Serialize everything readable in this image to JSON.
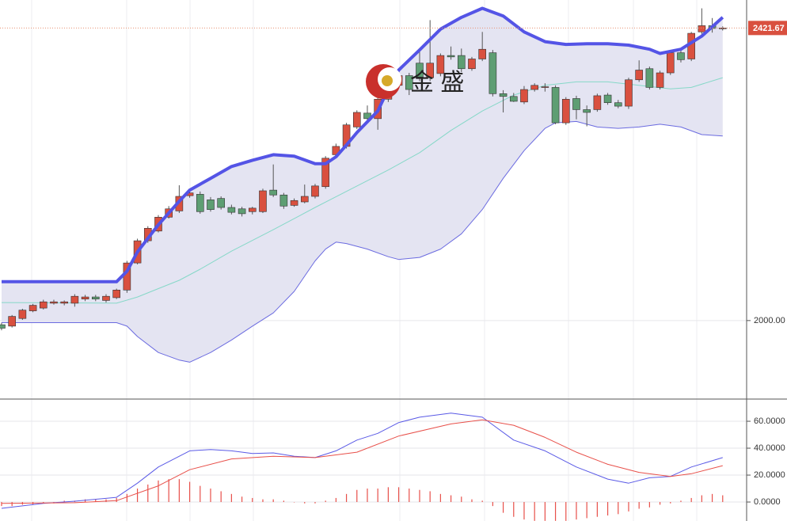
{
  "chart_data": [
    {
      "type": "candlestick",
      "watermark": "金 盛",
      "xlim": [
        -0.15,
        71.29
      ],
      "ylim": [
        1888,
        2462
      ],
      "yticks": [
        {
          "value": 2000,
          "label": "2000.00"
        }
      ],
      "last_price": {
        "value": 2421.67,
        "label": "2421.67"
      },
      "up_color": "#d9503f",
      "down_color": "#5e9e73",
      "open": [
        1994,
        1992,
        2003,
        2014,
        2018,
        2025,
        2025,
        2025,
        2031,
        2034,
        2029,
        2033,
        2044,
        2083,
        2115,
        2129,
        2149,
        2158,
        2180,
        2182,
        2174,
        2176,
        2163,
        2161,
        2157,
        2157,
        2188,
        2181,
        2166,
        2171,
        2179,
        2193,
        2239,
        2251,
        2279,
        2299,
        2291,
        2319,
        2339,
        2353,
        2371,
        2350,
        2356,
        2382,
        2382,
        2363,
        2377,
        2386,
        2327,
        2323,
        2315,
        2333,
        2336,
        2336,
        2285,
        2320,
        2304,
        2304,
        2325,
        2314,
        2309,
        2347,
        2363,
        2336,
        2357,
        2386,
        2377,
        2416,
        2425,
        2421
      ],
      "high": [
        1997,
        2008,
        2017,
        2024,
        2030,
        2030,
        2029,
        2038,
        2037,
        2037,
        2038,
        2046,
        2086,
        2118,
        2136,
        2152,
        2165,
        2195,
        2187,
        2186,
        2178,
        2179,
        2167,
        2164,
        2164,
        2190,
        2225,
        2184,
        2176,
        2196,
        2197,
        2237,
        2255,
        2285,
        2303,
        2310,
        2322,
        2351,
        2360,
        2357,
        2390,
        2433,
        2385,
        2395,
        2392,
        2380,
        2416,
        2390,
        2332,
        2328,
        2338,
        2342,
        2342,
        2339,
        2322,
        2324,
        2310,
        2327,
        2328,
        2318,
        2350,
        2375,
        2366,
        2360,
        2390,
        2390,
        2416,
        2450,
        2436,
        2424
      ],
      "low": [
        1986,
        1990,
        2001,
        2012,
        2016,
        2023,
        2022,
        2020,
        2028,
        2028,
        2026,
        2031,
        2040,
        2081,
        2112,
        2127,
        2147,
        2155,
        2177,
        2154,
        2157,
        2160,
        2153,
        2150,
        2153,
        2155,
        2178,
        2161,
        2164,
        2169,
        2176,
        2190,
        2236,
        2248,
        2276,
        2285,
        2275,
        2315,
        2336,
        2325,
        2345,
        2345,
        2352,
        2376,
        2358,
        2360,
        2374,
        2323,
        2300,
        2315,
        2312,
        2330,
        2330,
        2283,
        2282,
        2290,
        2280,
        2301,
        2311,
        2306,
        2305,
        2344,
        2333,
        2333,
        2354,
        2372,
        2374,
        2412,
        2415,
        2418
      ],
      "close": [
        1989,
        2006,
        2015,
        2022,
        2027,
        2027,
        2027,
        2035,
        2034,
        2031,
        2035,
        2044,
        2083,
        2115,
        2133,
        2149,
        2161,
        2179,
        2184,
        2157,
        2160,
        2163,
        2156,
        2154,
        2162,
        2187,
        2181,
        2165,
        2173,
        2179,
        2194,
        2234,
        2251,
        2282,
        2300,
        2291,
        2319,
        2348,
        2353,
        2333,
        2351,
        2371,
        2382,
        2380,
        2363,
        2377,
        2391,
        2327,
        2323,
        2316,
        2333,
        2339,
        2337,
        2285,
        2319,
        2304,
        2300,
        2324,
        2314,
        2309,
        2347,
        2361,
        2336,
        2357,
        2386,
        2376,
        2414,
        2425,
        2421,
        2421.67
      ],
      "band_fill": "#e4e4f2",
      "series": [
        {
          "role": "upper",
          "color": "#5454e6",
          "width": 4,
          "x": [
            0,
            11,
            12,
            13,
            15,
            17,
            18,
            20,
            22,
            24,
            26,
            28,
            30,
            31,
            32,
            33,
            34,
            36,
            37,
            38,
            40,
            42,
            44,
            46,
            48,
            50,
            52,
            54,
            56,
            58,
            60,
            62,
            63,
            65,
            67,
            69
          ],
          "values": [
            2056,
            2056,
            2071,
            2099,
            2138,
            2172,
            2188,
            2205,
            2222,
            2231,
            2239,
            2237,
            2226,
            2226,
            2236,
            2253,
            2271,
            2302,
            2334,
            2361,
            2390,
            2420,
            2437,
            2450,
            2439,
            2416,
            2402,
            2398,
            2399,
            2399,
            2397,
            2391,
            2385,
            2391,
            2410,
            2437
          ]
        },
        {
          "role": "middle",
          "color": "#86d8c8",
          "width": 1,
          "x": [
            0,
            11,
            13,
            15,
            17,
            19,
            22,
            26,
            30,
            34,
            37,
            40,
            43,
            46,
            49,
            52,
            55,
            58,
            61,
            64,
            66,
            69
          ],
          "values": [
            2026,
            2025,
            2034,
            2046,
            2058,
            2074,
            2100,
            2131,
            2163,
            2194,
            2217,
            2242,
            2274,
            2302,
            2325,
            2339,
            2344,
            2344,
            2339,
            2334,
            2336,
            2350
          ]
        },
        {
          "role": "lower",
          "color": "#6b6be0",
          "width": 1,
          "x": [
            0,
            11,
            12,
            13,
            15,
            17,
            18,
            20,
            22,
            24,
            26,
            28,
            30,
            31,
            32,
            33,
            35,
            37,
            38,
            40,
            42,
            44,
            46,
            48,
            50,
            52,
            53,
            55,
            57,
            59,
            61,
            63,
            65,
            67,
            69
          ],
          "values": [
            1997,
            1997,
            1992,
            1977,
            1954,
            1943,
            1940,
            1954,
            1972,
            1992,
            2011,
            2042,
            2086,
            2103,
            2113,
            2111,
            2103,
            2092,
            2088,
            2091,
            2103,
            2125,
            2160,
            2205,
            2245,
            2277,
            2285,
            2287,
            2279,
            2277,
            2279,
            2283,
            2279,
            2268,
            2266
          ]
        }
      ]
    },
    {
      "type": "macd",
      "xlim": [
        -0.15,
        71.29
      ],
      "ylim": [
        -14.1,
        75.9
      ],
      "yticks": [
        {
          "value": 0,
          "label": "0.0000"
        },
        {
          "value": 20,
          "label": "20.0000"
        },
        {
          "value": 40,
          "label": "40.0000"
        },
        {
          "value": 60,
          "label": "60.0000"
        }
      ],
      "histogram": {
        "color": "#e8504a",
        "values": [
          -3,
          -3,
          -2,
          -2,
          -1,
          -1,
          1,
          1,
          2,
          2,
          2,
          3,
          6,
          10,
          13,
          16,
          17,
          17,
          15,
          12,
          10,
          8,
          6,
          4,
          3,
          2,
          2,
          1,
          0,
          -1,
          -1,
          1,
          3,
          6,
          9,
          10,
          10,
          11,
          11,
          10,
          9,
          8,
          6,
          5,
          4,
          2,
          1,
          -3,
          -8,
          -11,
          -13,
          -14,
          -14,
          -14,
          -14,
          -13,
          -12,
          -11,
          -10,
          -9,
          -7,
          -5,
          -4,
          -2,
          -1,
          1,
          3,
          5,
          6,
          5
        ]
      },
      "series": [
        {
          "color": "#5a5ae6",
          "x": [
            0,
            4,
            7,
            11,
            13,
            15,
            18,
            20,
            22,
            24,
            26,
            28,
            30,
            32,
            34,
            36,
            38,
            40,
            43,
            46,
            49,
            52,
            55,
            58,
            60,
            62,
            64,
            66,
            69
          ],
          "values": [
            -4.7,
            -1,
            0.6,
            3.5,
            14,
            26,
            38,
            39,
            38,
            36,
            36.5,
            34,
            33,
            38,
            46,
            51,
            59,
            63,
            66,
            63,
            46,
            38,
            26,
            17,
            14,
            18,
            19,
            26,
            33
          ]
        },
        {
          "color": "#e8504a",
          "x": [
            0,
            7,
            11,
            15,
            18,
            22,
            26,
            30,
            34,
            38,
            43,
            46,
            49,
            52,
            55,
            58,
            61,
            64,
            66,
            69
          ],
          "values": [
            -1,
            -0.5,
            1,
            12,
            24,
            32,
            34,
            33,
            37,
            49,
            58,
            61,
            57,
            48,
            37,
            28,
            22,
            19,
            21,
            27
          ]
        }
      ]
    }
  ]
}
